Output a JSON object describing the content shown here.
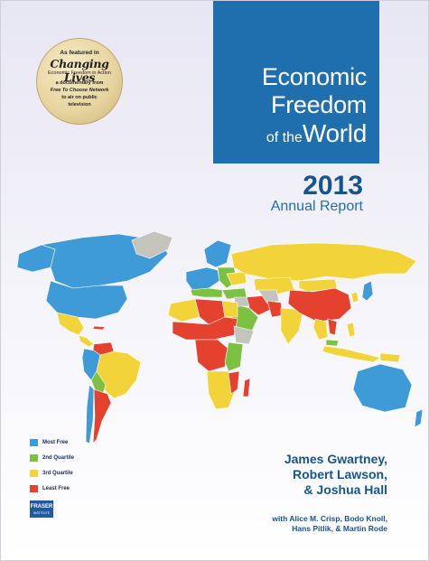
{
  "title": {
    "line1": "Economic",
    "line2": "Freedom",
    "line3_small": "of the",
    "line3_big": "World"
  },
  "year": "2013",
  "subtitle": "Annual Report",
  "seal": {
    "featured": "As featured in",
    "program": "Changing Lives",
    "tagline": "Economic Freedom in Action",
    "doc": "a documentary from",
    "network": "Free To Choose Network",
    "air": "to air on public",
    "tv": "television"
  },
  "legend": {
    "items": [
      {
        "label": "Most Free",
        "color": "#3f9ad8"
      },
      {
        "label": "2nd Quartile",
        "color": "#7cc142"
      },
      {
        "label": "3rd Quartile",
        "color": "#f2d33a"
      },
      {
        "label": "Least Free",
        "color": "#e5412f"
      }
    ]
  },
  "map_colors": {
    "no_data": "#c5c4bc",
    "most": "#3f9ad8",
    "second": "#7cc142",
    "third": "#f2d33a",
    "least": "#e5412f"
  },
  "authors": {
    "line1": "James Gwartney,",
    "line2": "Robert Lawson,",
    "line3": "& Joshua Hall"
  },
  "contributors": {
    "line1": "with Alice M. Crisp, Bodo Knoll,",
    "line2": "Hans Pitlik, & Martin Rode"
  },
  "publisher": {
    "name": "FRASER",
    "sub": "INSTITUTE"
  }
}
